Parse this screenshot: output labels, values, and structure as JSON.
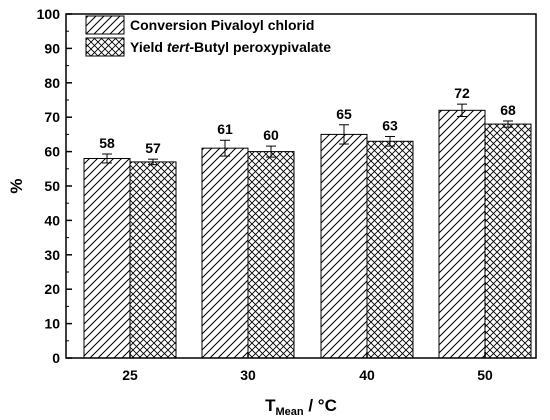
{
  "chart_data": {
    "type": "bar",
    "categories": [
      "25",
      "30",
      "40",
      "50"
    ],
    "series": [
      {
        "name": "Conversion Pivaloyl chlorid",
        "values": [
          58,
          61,
          65,
          72
        ],
        "errors": [
          1.3,
          2.3,
          2.8,
          1.8
        ],
        "pattern": "diagonal"
      },
      {
        "name_parts": [
          "Yield ",
          "tert",
          "-Butyl peroxypivalate"
        ],
        "values": [
          57,
          60,
          63,
          68
        ],
        "errors": [
          0.8,
          1.6,
          1.4,
          0.9
        ],
        "pattern": "crosshatch"
      }
    ],
    "data_labels": [
      [
        "58",
        "61",
        "65",
        "72"
      ],
      [
        "57",
        "60",
        "63",
        "68"
      ]
    ],
    "ylim": [
      0,
      100
    ],
    "yticks": [
      "0",
      "10",
      "20",
      "30",
      "40",
      "50",
      "60",
      "70",
      "80",
      "90",
      "100"
    ],
    "ylabel": "%",
    "xlabel": {
      "main": "T",
      "sub": "Mean",
      "unit": " / °C"
    },
    "grid": false,
    "legend_position": "top-left"
  }
}
